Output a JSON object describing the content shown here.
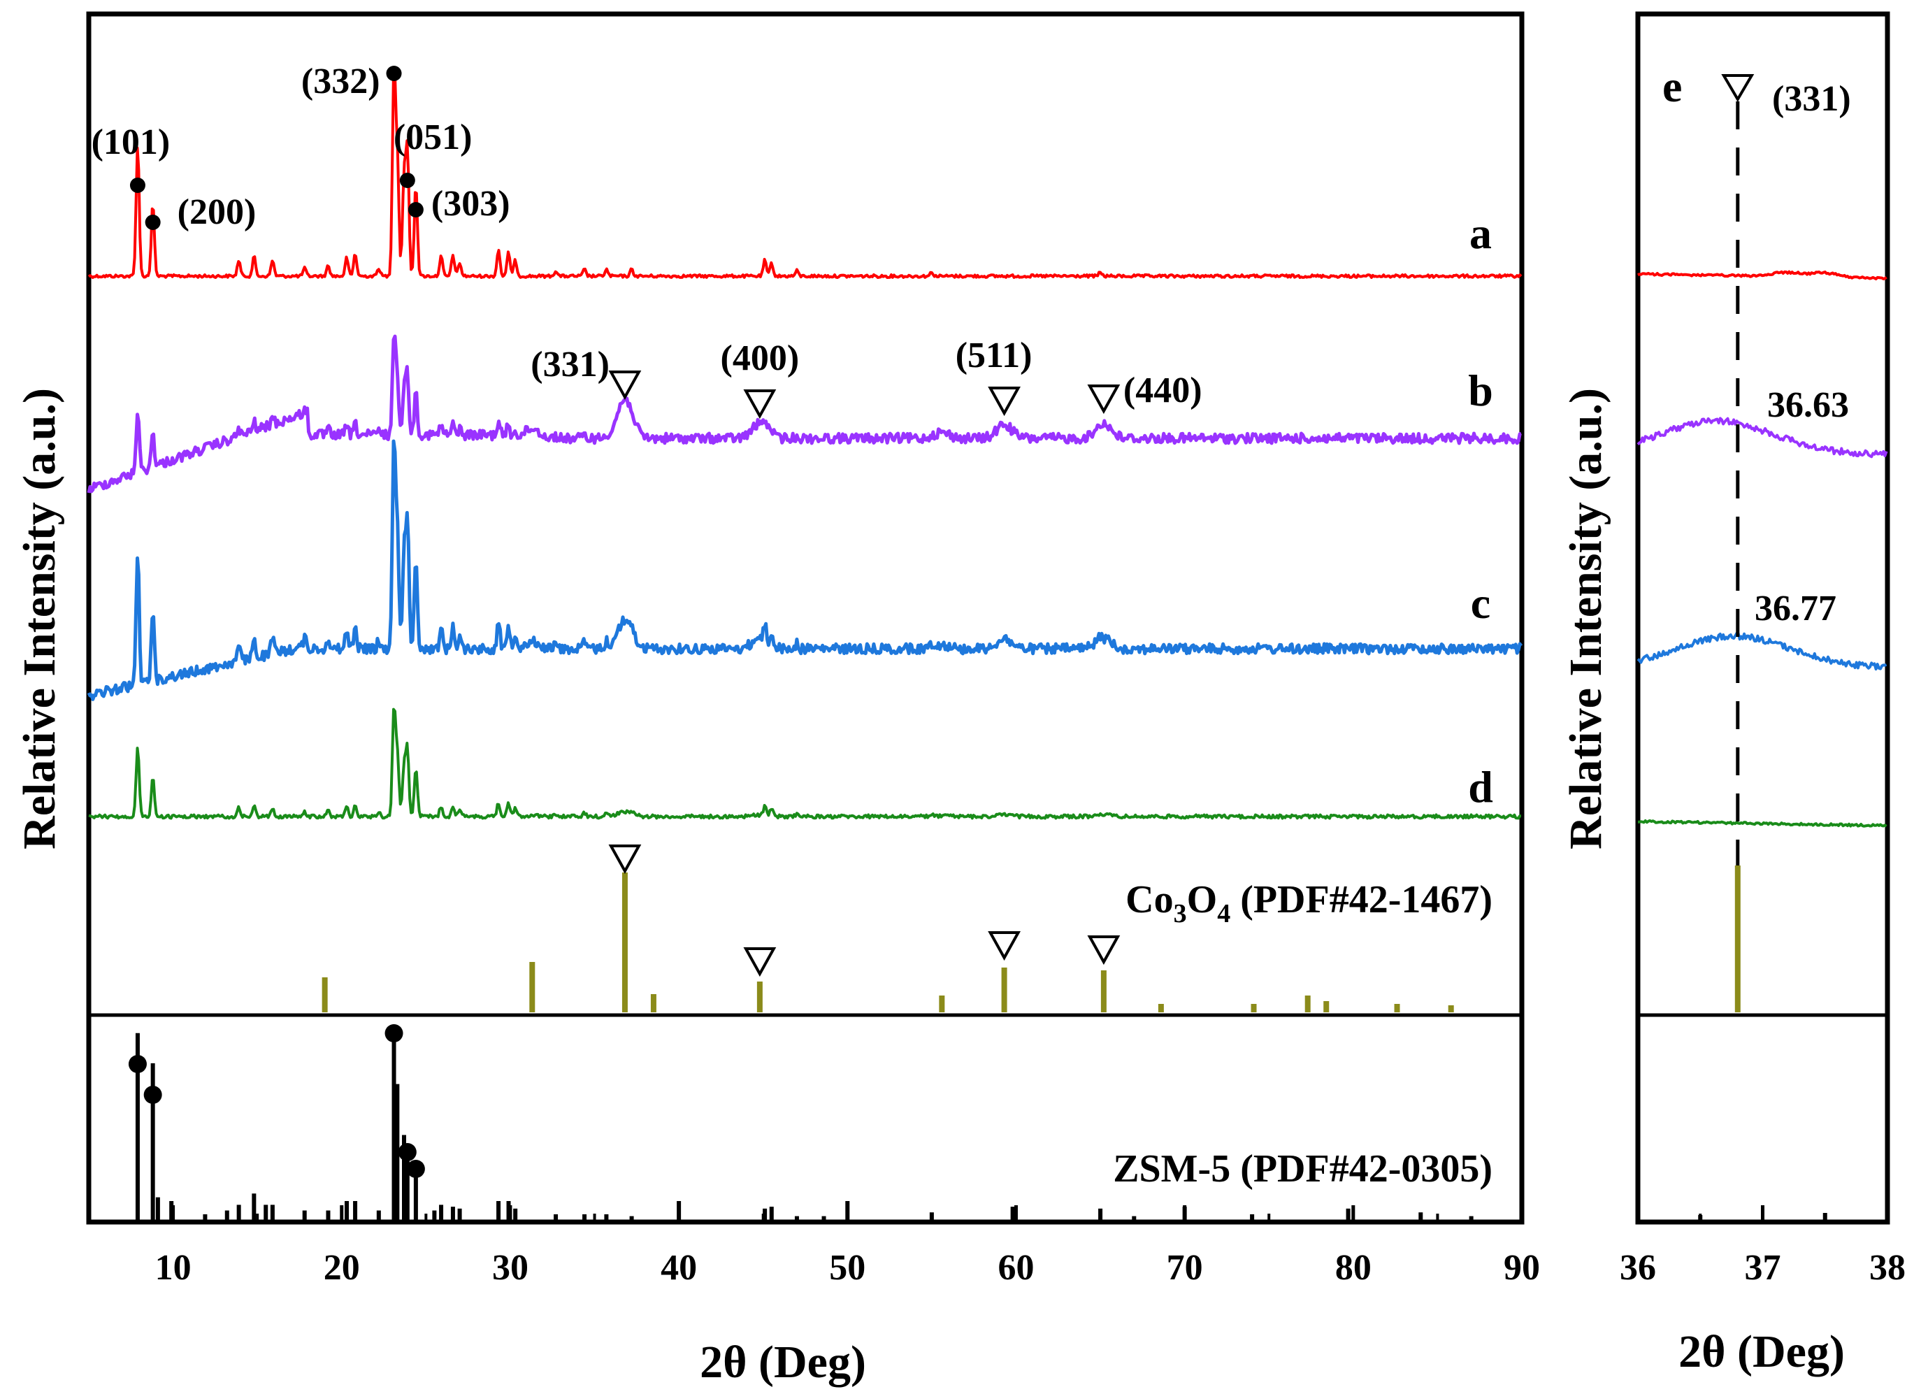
{
  "chart_data": {
    "type": "line",
    "figure": "XRD patterns",
    "colors": {
      "a": "#ff0000",
      "b": "#9933ff",
      "c": "#1e78dc",
      "d": "#1a8c1a",
      "co3o4": "#8b8b1a",
      "zsm5": "#000000"
    },
    "main": {
      "xlabel": "2θ (Deg)",
      "ylabel": "Relative Intensity (a.u.)",
      "xlim": [
        5,
        90
      ],
      "xticks": [
        "10",
        "20",
        "30",
        "40",
        "50",
        "60",
        "70",
        "80",
        "90"
      ],
      "series": [
        {
          "name": "a",
          "label": "a",
          "color": "#ff0000"
        },
        {
          "name": "b",
          "label": "b",
          "color": "#9933ff"
        },
        {
          "name": "c",
          "label": "c",
          "color": "#1e78dc"
        },
        {
          "name": "d",
          "label": "d",
          "color": "#1a8c1a"
        }
      ],
      "zsm5_peaks_a": [
        {
          "x": 7.9,
          "label": "(101)"
        },
        {
          "x": 8.8,
          "label": "(200)"
        },
        {
          "x": 23.1,
          "label": "(332)"
        },
        {
          "x": 23.9,
          "label": "(051)"
        },
        {
          "x": 24.4,
          "label": "(303)"
        }
      ],
      "co3o4_peaks_b": [
        {
          "x": 36.8,
          "label": "(331)"
        },
        {
          "x": 44.8,
          "label": "(400)"
        },
        {
          "x": 59.3,
          "label": "(511)"
        },
        {
          "x": 65.2,
          "label": "(440)"
        }
      ],
      "co3o4_reference": {
        "label_prefix": "Co",
        "sub1": "3",
        "mid": "O",
        "sub2": "4",
        "label_suffix": " (PDF#42-1467)",
        "lines": [
          {
            "x": 19.0,
            "h": 0.25
          },
          {
            "x": 31.3,
            "h": 0.36
          },
          {
            "x": 36.8,
            "h": 1.0
          },
          {
            "x": 38.5,
            "h": 0.13
          },
          {
            "x": 44.8,
            "h": 0.22
          },
          {
            "x": 55.6,
            "h": 0.12
          },
          {
            "x": 59.3,
            "h": 0.32
          },
          {
            "x": 65.2,
            "h": 0.3
          },
          {
            "x": 68.6,
            "h": 0.06
          },
          {
            "x": 74.1,
            "h": 0.06
          },
          {
            "x": 77.3,
            "h": 0.12
          },
          {
            "x": 78.4,
            "h": 0.08
          },
          {
            "x": 82.6,
            "h": 0.06
          },
          {
            "x": 85.8,
            "h": 0.05
          }
        ],
        "marked": [
          36.8,
          44.8,
          59.3,
          65.2
        ]
      },
      "zsm5_reference": {
        "label": "ZSM-5 (PDF#42-0305)",
        "lines": [
          {
            "x": 7.9,
            "h": 0.99
          },
          {
            "x": 8.8,
            "h": 0.83
          },
          {
            "x": 9.1,
            "h": 0.12
          },
          {
            "x": 9.9,
            "h": 0.1
          },
          {
            "x": 11.9,
            "h": 0.03
          },
          {
            "x": 13.2,
            "h": 0.05
          },
          {
            "x": 13.9,
            "h": 0.08
          },
          {
            "x": 14.8,
            "h": 0.14
          },
          {
            "x": 15.5,
            "h": 0.08
          },
          {
            "x": 15.9,
            "h": 0.08
          },
          {
            "x": 17.8,
            "h": 0.05
          },
          {
            "x": 19.2,
            "h": 0.05
          },
          {
            "x": 20.3,
            "h": 0.1
          },
          {
            "x": 20.8,
            "h": 0.1
          },
          {
            "x": 22.2,
            "h": 0.05
          },
          {
            "x": 23.1,
            "h": 1.0
          },
          {
            "x": 23.3,
            "h": 0.72
          },
          {
            "x": 23.7,
            "h": 0.45
          },
          {
            "x": 23.9,
            "h": 0.35
          },
          {
            "x": 24.4,
            "h": 0.29
          },
          {
            "x": 25.5,
            "h": 0.05
          },
          {
            "x": 25.9,
            "h": 0.08
          },
          {
            "x": 26.6,
            "h": 0.07
          },
          {
            "x": 27.0,
            "h": 0.06
          },
          {
            "x": 29.3,
            "h": 0.1
          },
          {
            "x": 29.9,
            "h": 0.1
          },
          {
            "x": 30.3,
            "h": 0.06
          },
          {
            "x": 32.7,
            "h": 0.03
          },
          {
            "x": 34.4,
            "h": 0.03
          },
          {
            "x": 35.7,
            "h": 0.03
          },
          {
            "x": 37.2,
            "h": 0.02
          },
          {
            "x": 40.0,
            "h": 0.1
          },
          {
            "x": 45.1,
            "h": 0.06
          },
          {
            "x": 45.5,
            "h": 0.07
          },
          {
            "x": 47.0,
            "h": 0.02
          },
          {
            "x": 48.6,
            "h": 0.02
          },
          {
            "x": 50.0,
            "h": 0.1
          },
          {
            "x": 55.0,
            "h": 0.04
          },
          {
            "x": 59.8,
            "h": 0.07
          },
          {
            "x": 65.0,
            "h": 0.06
          },
          {
            "x": 67.0,
            "h": 0.02
          },
          {
            "x": 70.0,
            "h": 0.07
          },
          {
            "x": 74.0,
            "h": 0.03
          },
          {
            "x": 79.7,
            "h": 0.06
          },
          {
            "x": 84.0,
            "h": 0.04
          },
          {
            "x": 87.0,
            "h": 0.02
          }
        ],
        "marked": [
          7.9,
          8.8,
          23.1,
          23.9,
          24.4
        ]
      }
    },
    "inset": {
      "panel_label": "e",
      "xlabel": "2θ (Deg)",
      "ylabel": "Relative Intensity (a.u.)",
      "xlim": [
        36,
        38
      ],
      "xticks": [
        "36",
        "37",
        "38"
      ],
      "peak_label": "(331)",
      "peak_x": 36.8,
      "annotations": [
        {
          "series": "b",
          "text": "36.63"
        },
        {
          "series": "c",
          "text": "36.77"
        }
      ]
    }
  }
}
